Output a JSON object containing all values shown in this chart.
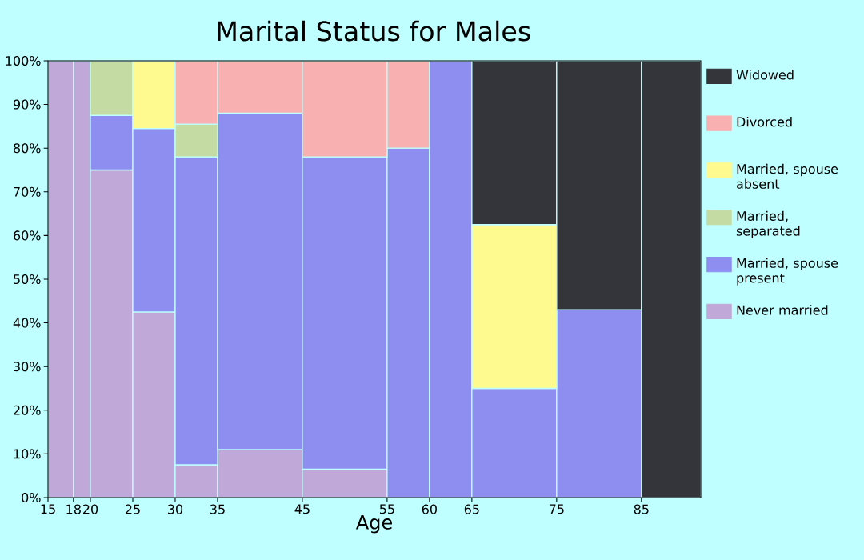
{
  "chart_data": {
    "type": "bar",
    "stacked": true,
    "title": "Marital Status for Males",
    "xlabel": "Age",
    "x": [
      16.5,
      19,
      22.5,
      27.5,
      32.5,
      40,
      50,
      57.5,
      62.5,
      70,
      80,
      88.5
    ],
    "xlim": [
      15,
      92
    ],
    "xticks": [
      15,
      18,
      20,
      25,
      30,
      35,
      45,
      55,
      60,
      65,
      75,
      85
    ],
    "ylim": [
      0,
      100
    ],
    "yticks": [
      {
        "value": 0,
        "label": "0%"
      },
      {
        "value": 10,
        "label": "10%"
      },
      {
        "value": 20,
        "label": "20%"
      },
      {
        "value": 30,
        "label": "30%"
      },
      {
        "value": 40,
        "label": "40%"
      },
      {
        "value": 50,
        "label": "50%"
      },
      {
        "value": 60,
        "label": "60%"
      },
      {
        "value": 70,
        "label": "70%"
      },
      {
        "value": 80,
        "label": "80%"
      },
      {
        "value": 90,
        "label": "90%"
      },
      {
        "value": 100,
        "label": "100%"
      }
    ],
    "legend": "right",
    "grid": false,
    "series": [
      {
        "name": "Never married",
        "color": "#c0a8d8",
        "values": [
          100,
          100,
          75,
          42.5,
          7.5,
          11,
          6.5,
          0,
          0,
          0,
          0,
          0
        ]
      },
      {
        "name": "Married, spouse present",
        "color": "#8e8ef0",
        "values": [
          0,
          0,
          12.5,
          42,
          70.5,
          77,
          71.5,
          80,
          100,
          25,
          43,
          0
        ]
      },
      {
        "name": "Married, separated",
        "color": "#c4dca4",
        "values": [
          0,
          0,
          12.5,
          0,
          7.5,
          0,
          0,
          0,
          0,
          0,
          0,
          0
        ]
      },
      {
        "name": "Married, spouse absent",
        "color": "#fefa90",
        "values": [
          0,
          0,
          0,
          15.5,
          0,
          0,
          0,
          0,
          0,
          37.5,
          0,
          0
        ]
      },
      {
        "name": "Divorced",
        "color": "#f8b0b0",
        "values": [
          0,
          0,
          0,
          0,
          14.5,
          12,
          22,
          20,
          0,
          0,
          0,
          0
        ]
      },
      {
        "name": "Widowed",
        "color": "#34353b",
        "values": [
          0,
          0,
          0,
          0,
          0,
          0,
          0,
          0,
          0,
          37.5,
          57,
          100
        ]
      }
    ]
  }
}
